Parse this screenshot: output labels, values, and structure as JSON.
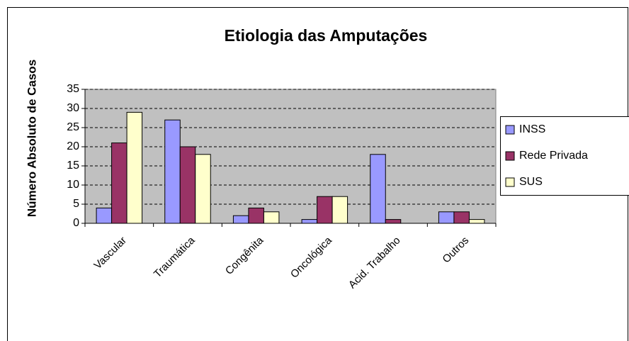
{
  "chart_data": {
    "type": "bar",
    "title": "Etiologia das Amputações",
    "y_label": "Número Absoluto de Casos",
    "categories": [
      "Vascular",
      "Traumática",
      "Congênita",
      "Oncológica",
      "Acid. Trabalho",
      "Outros"
    ],
    "series": [
      {
        "name": "INSS",
        "color": "#9999ff",
        "values": [
          4,
          27,
          2,
          1,
          18,
          3
        ]
      },
      {
        "name": "Rede Privada",
        "color": "#993366",
        "values": [
          21,
          20,
          4,
          7,
          1,
          3
        ]
      },
      {
        "name": "SUS",
        "color": "#ffffcc",
        "values": [
          29,
          18,
          3,
          7,
          0,
          1
        ]
      }
    ],
    "ylim": [
      0,
      35
    ],
    "yticks": [
      0,
      5,
      10,
      15,
      20,
      25,
      30,
      35
    ],
    "grid": true,
    "legend": "right",
    "plot_background": "#c0c0c0"
  }
}
